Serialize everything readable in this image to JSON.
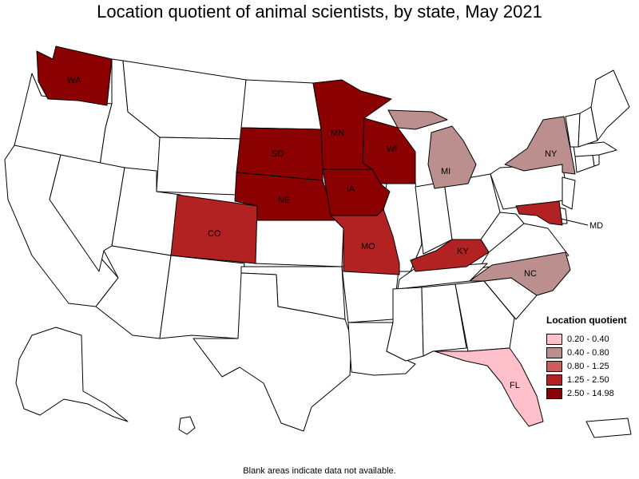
{
  "title": "Location quotient of animal scientists, by state, May 2021",
  "footer": "Blank areas indicate data not available.",
  "legend": {
    "title": "Location quotient",
    "items": [
      {
        "label": "0.20 - 0.40",
        "color": "#ffc0cb"
      },
      {
        "label": "0.40 - 0.80",
        "color": "#bc8f8f"
      },
      {
        "label": "0.80 - 1.25",
        "color": "#cd5c5c"
      },
      {
        "label": "1.25 - 2.50",
        "color": "#b22222"
      },
      {
        "label": "2.50 - 14.98",
        "color": "#8b0000"
      }
    ]
  },
  "states": [
    {
      "abbr": "WA",
      "class": "2.50 - 14.98"
    },
    {
      "abbr": "MN",
      "class": "2.50 - 14.98"
    },
    {
      "abbr": "SD",
      "class": "2.50 - 14.98"
    },
    {
      "abbr": "WI",
      "class": "2.50 - 14.98"
    },
    {
      "abbr": "NE",
      "class": "2.50 - 14.98"
    },
    {
      "abbr": "IA",
      "class": "2.50 - 14.98"
    },
    {
      "abbr": "CO",
      "class": "1.25 - 2.50"
    },
    {
      "abbr": "MO",
      "class": "1.25 - 2.50"
    },
    {
      "abbr": "KY",
      "class": "1.25 - 2.50"
    },
    {
      "abbr": "MD",
      "class": "1.25 - 2.50"
    },
    {
      "abbr": "MI",
      "class": "0.40 - 0.80"
    },
    {
      "abbr": "NY",
      "class": "0.40 - 0.80"
    },
    {
      "abbr": "NC",
      "class": "0.40 - 0.80"
    },
    {
      "abbr": "FL",
      "class": "0.20 - 0.40"
    }
  ]
}
